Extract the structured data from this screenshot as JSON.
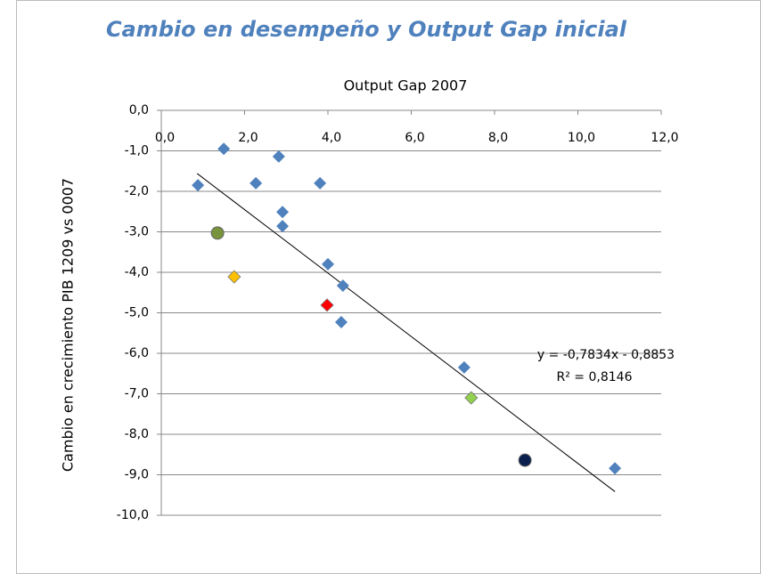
{
  "chart_data": {
    "type": "scatter",
    "title": "Cambio en desempeño y Output Gap inicial",
    "x_label": "Output Gap 2007",
    "y_label": "Cambio en crecimiento PIB 1209 vs 0007",
    "xlim": [
      0,
      12
    ],
    "ylim": [
      -10,
      0
    ],
    "xticks": [
      {
        "value": 0,
        "label": "0,0"
      },
      {
        "value": 2,
        "label": "2,0"
      },
      {
        "value": 4,
        "label": "4,0"
      },
      {
        "value": 6,
        "label": "6,0"
      },
      {
        "value": 8,
        "label": "8,0"
      },
      {
        "value": 10,
        "label": "10,0"
      },
      {
        "value": 12,
        "label": "12,0"
      }
    ],
    "yticks": [
      {
        "value": 0,
        "label": "0,0"
      },
      {
        "value": -1,
        "label": "-1,0"
      },
      {
        "value": -2,
        "label": "-2,0"
      },
      {
        "value": -3,
        "label": "-3,0"
      },
      {
        "value": -4,
        "label": "-4,0"
      },
      {
        "value": -5,
        "label": "-5,0"
      },
      {
        "value": -6,
        "label": "-6,0"
      },
      {
        "value": -7,
        "label": "-7,0"
      },
      {
        "value": -8,
        "label": "-8,0"
      },
      {
        "value": -9,
        "label": "-9,0"
      },
      {
        "value": -10,
        "label": "-10,0"
      }
    ],
    "grid": true,
    "series": [
      {
        "color": "#4f81bd",
        "marker": "diamond",
        "x": [
          0.88,
          1.5,
          2.27,
          2.82,
          3.81,
          2.91,
          2.91,
          4.0,
          4.36,
          4.32,
          7.27,
          10.89
        ],
        "values": [
          -1.85,
          -0.95,
          -1.8,
          -1.14,
          -1.8,
          -2.51,
          -2.86,
          -3.8,
          -4.33,
          -5.23,
          -6.35,
          -8.84
        ]
      },
      {
        "color": "#77933c",
        "marker": "circle",
        "x": [
          1.35
        ],
        "values": [
          -3.03
        ]
      },
      {
        "color": "#ffc000",
        "marker": "diamond",
        "x": [
          1.75
        ],
        "values": [
          -4.11
        ]
      },
      {
        "color": "#ff0000",
        "marker": "diamond",
        "x": [
          3.98
        ],
        "values": [
          -4.81
        ]
      },
      {
        "color": "#92d050",
        "marker": "diamond",
        "x": [
          7.44
        ],
        "values": [
          -7.1
        ]
      },
      {
        "color": "#0b1f4f",
        "marker": "circle",
        "x": [
          8.73
        ],
        "values": [
          -8.64
        ]
      }
    ],
    "trendline": {
      "equation": "y = -0,7834x - 0,8853",
      "r2": "R² = 0,8146",
      "slope": -0.7834,
      "intercept": -0.8853,
      "x": [
        0.86,
        10.89
      ]
    }
  }
}
